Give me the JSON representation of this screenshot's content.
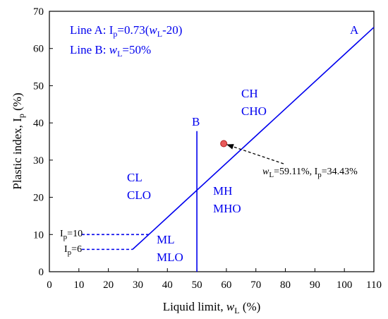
{
  "chart_data": {
    "type": "scatter",
    "xlabel": "Liquid limit, wL (%)",
    "ylabel": "Plastic index, Ip (%)",
    "xlim": [
      0,
      110
    ],
    "ylim": [
      0,
      70
    ],
    "xticks": [
      0,
      10,
      20,
      30,
      40,
      50,
      60,
      70,
      80,
      90,
      100,
      110
    ],
    "yticks": [
      0,
      10,
      20,
      30,
      40,
      50,
      60,
      70
    ],
    "grid": false,
    "colors": {
      "lines": "#0000ee",
      "point_fill": "#e85a5a",
      "point_edge": "#b02020",
      "annotation": "#000000"
    },
    "series": [
      {
        "name": "Line A",
        "style": "solid",
        "x": [
          33.7,
          110
        ],
        "y": [
          10,
          65.7
        ]
      },
      {
        "name": "Line B",
        "style": "solid",
        "x": [
          50,
          50
        ],
        "y": [
          0,
          37.8
        ]
      },
      {
        "style": "solid",
        "x": [
          28.2,
          33.7
        ],
        "y": [
          6,
          10
        ]
      },
      {
        "style": "dashed",
        "x": [
          11,
          33.7
        ],
        "y": [
          10,
          10
        ]
      },
      {
        "style": "dashed",
        "x": [
          11,
          28.2
        ],
        "y": [
          6,
          6
        ]
      }
    ],
    "points": [
      {
        "x": 59.11,
        "y": 34.43
      }
    ],
    "legend": {
      "line_a": "Line A: Ip=0.73(wL-20)",
      "line_b": "Line B: wL=50%"
    },
    "line_labels": {
      "a": "A",
      "b": "B"
    },
    "region_labels": {
      "ch": "CH",
      "cho": "CHO",
      "cl": "CL",
      "clo": "CLO",
      "mh": "MH",
      "mho": "MHO",
      "ml": "ML",
      "mlo": "MLO"
    },
    "annotations": {
      "point": "wL=59.11%, Ip=34.43%",
      "ip10": "Ip=10",
      "ip6": "Ip=6"
    }
  }
}
